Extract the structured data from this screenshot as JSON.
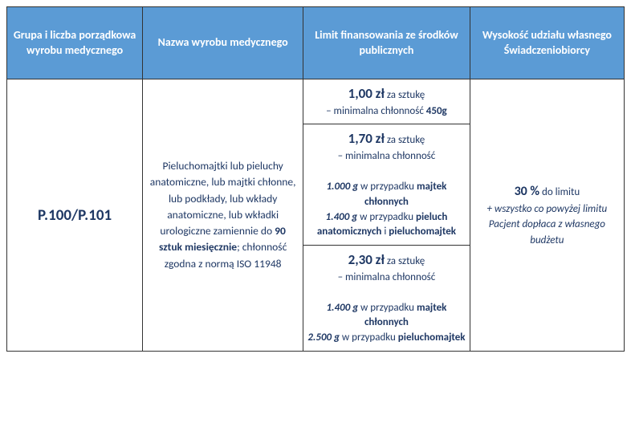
{
  "colors": {
    "header_bg": "#5b9bd5",
    "header_text": "#ffffff",
    "body_text": "#1f3864",
    "border": "#333333"
  },
  "headers": {
    "col1": "Grupa i liczba porządkowa wyrobu medycznego",
    "col2": "Nazwa wyrobu medycznego",
    "col3": "Limit finansowania ze środków publicznych",
    "col4": "Wysokość udziału własnego Świadczeniobiorcy"
  },
  "row": {
    "code": "P.100/P.101",
    "description": {
      "text_before": "Pieluchomajtki lub pieluchy anatomiczne, lub majtki chłonne, lub podkłady, lub wkłady anatomiczne, lub wkładki urologiczne zamiennie do ",
      "bold_qty": "90 sztuk miesięcznie",
      "text_after1": "; chłonność zgodna z normą ISO 11948"
    },
    "limits": [
      {
        "price": "1,00 zł",
        "per": " za sztukę",
        "sub_prefix": "– minimalna chłonność ",
        "sub_bold": "450g"
      },
      {
        "price": "1,70 zł",
        "per": " za sztukę",
        "sub_prefix": "– minimalna chłonność",
        "details": [
          {
            "amount": "1.000 g",
            "mid": " w przypadku ",
            "what": "majtek chłonnych"
          },
          {
            "amount": "1.400 g",
            "mid": " w przypadku ",
            "what": "pieluch anatomicznych",
            "and": " i ",
            "what2": "pieluchomajtek"
          }
        ]
      },
      {
        "price": "2,30 zł",
        "per": " za sztukę",
        "sub_prefix": "– minimalna chłonność",
        "details": [
          {
            "amount": "1.400 g",
            "mid": " w przypadku ",
            "what": "majtek chłonnych"
          },
          {
            "amount": "2.500 g",
            "mid": " w przypadku ",
            "what": "pieluchomajtek"
          }
        ]
      }
    ],
    "share": {
      "percent": "30 %",
      "to_limit": " do limitu",
      "note": "+ wszystko co powyżej limitu Pacjent dopłaca z własnego budżetu"
    }
  }
}
